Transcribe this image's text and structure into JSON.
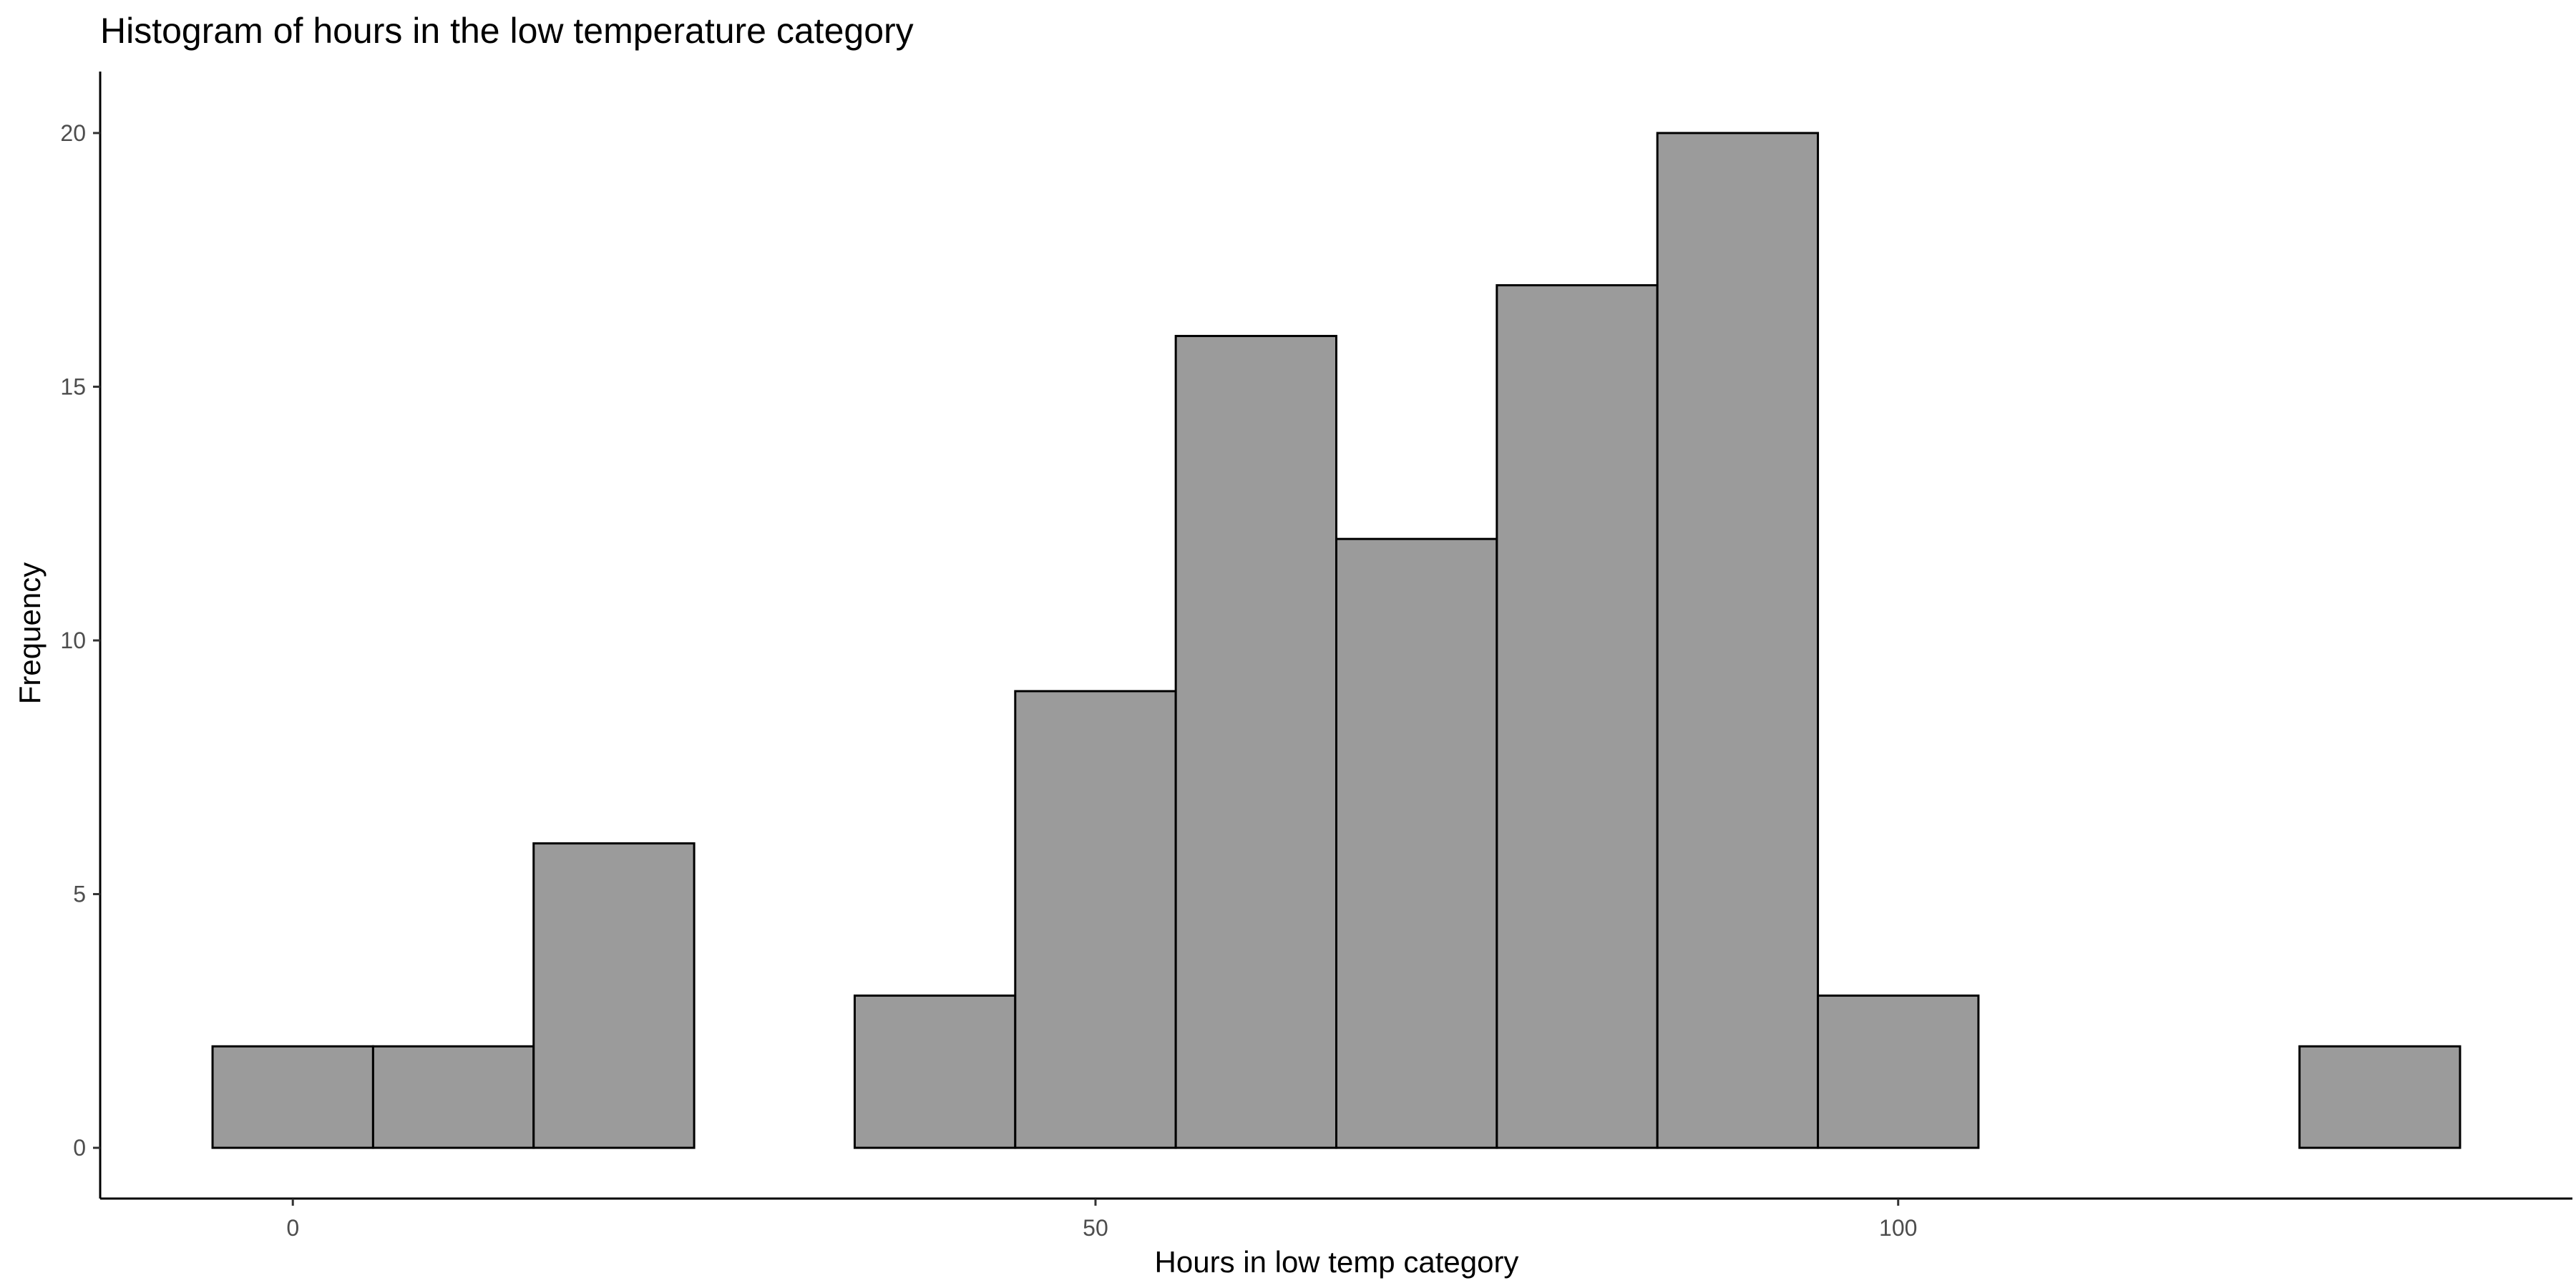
{
  "chart_data": {
    "type": "bar",
    "histogram": true,
    "title": "Histogram of hours in the low temperature category",
    "xlabel": "Hours in low temp category",
    "ylabel": "Frequency",
    "bin_width": 10,
    "bins": [
      {
        "start": -5,
        "end": 5,
        "count": 2
      },
      {
        "start": 5,
        "end": 15,
        "count": 2
      },
      {
        "start": 15,
        "end": 25,
        "count": 6
      },
      {
        "start": 25,
        "end": 35,
        "count": 0
      },
      {
        "start": 35,
        "end": 45,
        "count": 3
      },
      {
        "start": 45,
        "end": 55,
        "count": 9
      },
      {
        "start": 55,
        "end": 65,
        "count": 16
      },
      {
        "start": 65,
        "end": 75,
        "count": 12
      },
      {
        "start": 75,
        "end": 85,
        "count": 17
      },
      {
        "start": 85,
        "end": 95,
        "count": 20
      },
      {
        "start": 95,
        "end": 105,
        "count": 3
      },
      {
        "start": 105,
        "end": 115,
        "count": 0
      },
      {
        "start": 115,
        "end": 125,
        "count": 0
      },
      {
        "start": 125,
        "end": 135,
        "count": 2
      }
    ],
    "xlim": [
      -12,
      142
    ],
    "ylim": [
      -1,
      21
    ],
    "x_ticks": [
      {
        "value": 0,
        "label": "0"
      },
      {
        "value": 50,
        "label": "50"
      },
      {
        "value": 100,
        "label": "100"
      }
    ],
    "y_ticks": [
      {
        "value": 0,
        "label": "0"
      },
      {
        "value": 5,
        "label": "5"
      },
      {
        "value": 10,
        "label": "10"
      },
      {
        "value": 15,
        "label": "15"
      },
      {
        "value": 20,
        "label": "20"
      }
    ],
    "grid": false,
    "legend": "none",
    "bar_fill": "#9b9b9b",
    "bar_stroke": "#000000"
  }
}
